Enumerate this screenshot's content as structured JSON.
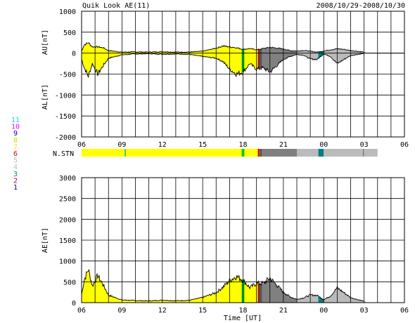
{
  "header": {
    "title": "Quik Look AE(11)",
    "date_range": "2008/10/29-2008/10/30"
  },
  "station_legend": [
    {
      "label": "11",
      "color": "#00e5e5"
    },
    {
      "label": "10",
      "color": "#ff00ff"
    },
    {
      "label": "9",
      "color": "#0000cc"
    },
    {
      "label": "8",
      "color": "#d6d600"
    },
    {
      "label": "7",
      "color": "#eeee00"
    },
    {
      "label": "6",
      "color": "#dd0000"
    },
    {
      "label": "5",
      "color": "#bbbbbb"
    },
    {
      "label": "4",
      "color": "#bbbbbb"
    },
    {
      "label": "3",
      "color": "#008080"
    },
    {
      "label": "2",
      "color": "#aa0044"
    },
    {
      "label": "1",
      "color": "#0000aa"
    }
  ],
  "n_stn_label": "N.STN",
  "x_axis": {
    "tick_labels": [
      "06",
      "09",
      "12",
      "15",
      "18",
      "21",
      "00",
      "03",
      "06"
    ],
    "xlabel": "Time [UT]"
  },
  "chart_data": [
    {
      "type": "area",
      "panel": "AU/AL",
      "ylabel_upper": "AU[nT]",
      "ylabel_lower": "AL[nT]",
      "xlim_hours": [
        6,
        30
      ],
      "ylim": [
        -2000,
        1000
      ],
      "yticks": [
        1000,
        500,
        0,
        -500,
        -1000,
        -1500,
        -2000
      ],
      "grid": true,
      "data_end_hour": 27.1,
      "series": [
        {
          "name": "AU",
          "x": [
            6.0,
            6.2,
            6.5,
            6.8,
            7.2,
            7.6,
            8.0,
            9.0,
            10.0,
            11.0,
            12.0,
            13.0,
            14.0,
            15.0,
            16.0,
            16.5,
            17.0,
            17.5,
            18.0,
            18.5,
            19.0,
            19.5,
            20.0,
            20.5,
            21.0,
            21.5,
            22.0,
            22.5,
            23.0,
            23.5,
            24.0,
            24.5,
            25.0,
            25.5,
            26.0,
            26.5,
            27.0
          ],
          "y": [
            50,
            200,
            250,
            150,
            150,
            130,
            60,
            25,
            30,
            25,
            35,
            25,
            25,
            45,
            120,
            170,
            150,
            130,
            90,
            110,
            80,
            110,
            140,
            120,
            100,
            60,
            50,
            65,
            45,
            25,
            50,
            80,
            105,
            90,
            60,
            45,
            25
          ]
        },
        {
          "name": "AL",
          "x": [
            6.0,
            6.2,
            6.5,
            6.8,
            7.2,
            7.6,
            8.0,
            9.0,
            10.0,
            11.0,
            12.0,
            13.0,
            14.0,
            15.0,
            16.0,
            16.5,
            17.0,
            17.5,
            18.0,
            18.5,
            19.0,
            19.5,
            20.0,
            20.5,
            21.0,
            21.5,
            22.0,
            22.5,
            23.0,
            23.5,
            24.0,
            24.5,
            25.0,
            25.5,
            26.0,
            26.5,
            27.0
          ],
          "y": [
            -150,
            -350,
            -550,
            -250,
            -500,
            -300,
            -120,
            -40,
            -20,
            -15,
            -25,
            -20,
            -30,
            -80,
            -120,
            -200,
            -380,
            -500,
            -450,
            -250,
            -380,
            -350,
            -450,
            -300,
            -150,
            -80,
            -30,
            -50,
            -140,
            -150,
            -20,
            -80,
            -250,
            -150,
            -60,
            -30,
            -10
          ]
        }
      ]
    },
    {
      "type": "bar",
      "panel": "N.STN",
      "segments": [
        {
          "start": 6.0,
          "end": 9.2,
          "color": "#ffff00"
        },
        {
          "start": 9.2,
          "end": 9.3,
          "color": "#44cc44"
        },
        {
          "start": 9.3,
          "end": 17.9,
          "color": "#ffff00"
        },
        {
          "start": 17.9,
          "end": 18.1,
          "color": "#00cc00"
        },
        {
          "start": 18.1,
          "end": 19.1,
          "color": "#ffff00"
        },
        {
          "start": 19.1,
          "end": 19.2,
          "color": "#cc0000"
        },
        {
          "start": 19.2,
          "end": 19.3,
          "color": "#996600"
        },
        {
          "start": 19.3,
          "end": 19.4,
          "color": "#444444"
        },
        {
          "start": 19.4,
          "end": 22.0,
          "color": "#808080"
        },
        {
          "start": 22.0,
          "end": 23.6,
          "color": "#bbbbbb"
        },
        {
          "start": 23.6,
          "end": 24.0,
          "color": "#008080"
        },
        {
          "start": 24.0,
          "end": 26.9,
          "color": "#bbbbbb"
        },
        {
          "start": 26.9,
          "end": 27.0,
          "color": "#808080"
        },
        {
          "start": 27.0,
          "end": 28.0,
          "color": "#bbbbbb"
        }
      ]
    },
    {
      "type": "area",
      "panel": "AE",
      "ylabel": "AE[nT]",
      "xlim_hours": [
        6,
        30
      ],
      "ylim": [
        0,
        3000
      ],
      "yticks": [
        3000,
        2500,
        2000,
        1500,
        1000,
        500,
        0
      ],
      "grid": true,
      "data_end_hour": 27.1,
      "series": [
        {
          "name": "AE",
          "x": [
            6.0,
            6.2,
            6.5,
            6.8,
            7.2,
            7.6,
            8.0,
            9.0,
            10.0,
            11.0,
            12.0,
            13.0,
            14.0,
            15.0,
            16.0,
            16.5,
            17.0,
            17.5,
            18.0,
            18.5,
            19.0,
            19.5,
            20.0,
            20.5,
            21.0,
            21.5,
            22.0,
            22.5,
            23.0,
            23.5,
            24.0,
            24.5,
            25.0,
            25.5,
            26.0,
            26.5,
            27.0
          ],
          "y": [
            200,
            550,
            800,
            400,
            650,
            430,
            180,
            65,
            50,
            40,
            60,
            45,
            55,
            125,
            240,
            370,
            530,
            630,
            540,
            360,
            460,
            460,
            590,
            420,
            250,
            140,
            80,
            115,
            185,
            175,
            70,
            160,
            355,
            240,
            120,
            75,
            35
          ]
        }
      ]
    }
  ]
}
